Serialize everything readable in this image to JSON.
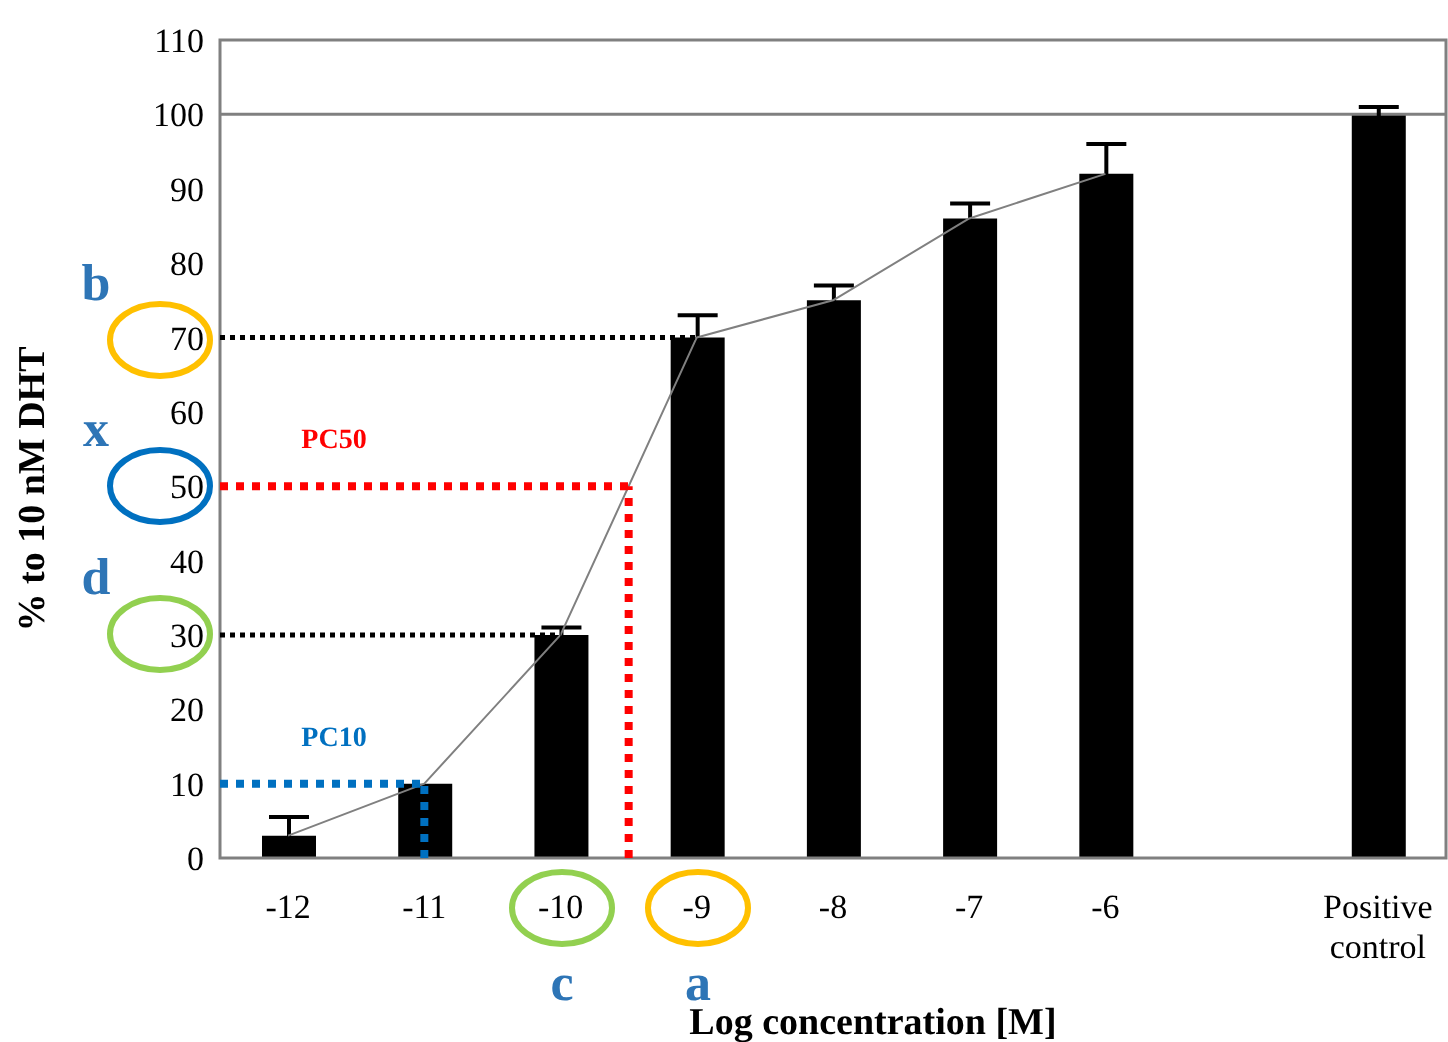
{
  "chart_data": {
    "type": "bar",
    "xlabel": "Log concentration [M]",
    "ylabel": "% to 10 nM DHT",
    "x": [
      -12,
      -11,
      -10,
      -9,
      -8,
      -7,
      -6,
      -4
    ],
    "xlim": [
      -12.5,
      -3.5
    ],
    "xticks": [
      -12,
      -11,
      -10,
      -9,
      -8,
      -7,
      -6,
      {
        "value": -4,
        "label": "Positive control"
      }
    ],
    "series": [
      {
        "color": "#000000",
        "values": [
          3,
          10,
          30,
          70,
          75,
          86,
          92,
          100
        ],
        "errors": [
          2.5,
          null,
          1,
          3,
          2,
          2,
          4,
          1
        ]
      },
      {
        "type": "line",
        "color": "#808080",
        "values": [
          3,
          10,
          30,
          70,
          75,
          86,
          92,
          null
        ]
      }
    ],
    "marker": "none",
    "ylim": [
      0,
      110
    ],
    "yticks": [
      0,
      10,
      20,
      30,
      40,
      50,
      60,
      70,
      80,
      90,
      100,
      110
    ],
    "ref_lines": [
      {
        "axis": "y",
        "value": 100,
        "color": "#808080",
        "line_style": "solid"
      },
      {
        "axis": "y",
        "value": 70,
        "color": "#000000",
        "line_style": "dotted"
      },
      {
        "axis": "y",
        "value": 50,
        "color": "#ff0000",
        "line_style": "dotted",
        "label": "PC50"
      },
      {
        "axis": "x",
        "value": -9.5,
        "color": "#ff0000",
        "line_style": "dotted"
      },
      {
        "axis": "y",
        "value": 30,
        "color": "#000000",
        "line_style": "dotted"
      },
      {
        "axis": "y",
        "value": 10,
        "color": "#0070c0",
        "line_style": "dotted",
        "label": "PC10"
      },
      {
        "axis": "x",
        "value": -11,
        "color": "#0070c0",
        "line_style": "dotted"
      }
    ],
    "annotations": [
      "b",
      "x",
      "d",
      "c",
      "a"
    ],
    "grid": false,
    "legend": false
  }
}
